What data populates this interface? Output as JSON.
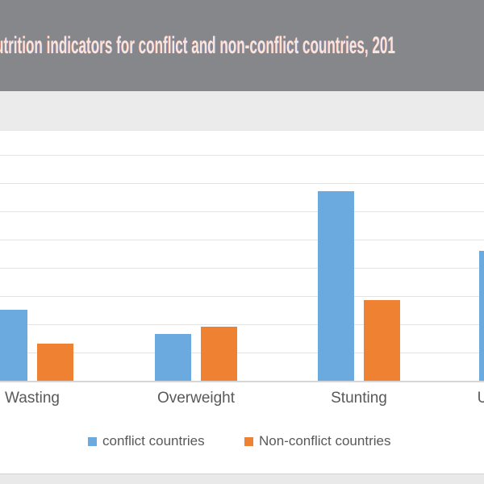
{
  "header": {
    "title_visible": "utrition indicators for conflict and non-conflict countries, 201",
    "bg_color": "#85878a",
    "text_color": "#f4e7e0"
  },
  "legend": {
    "items": [
      {
        "label": "conflict countries",
        "color": "#6aaade"
      },
      {
        "label": "Non-conflict countries",
        "color": "#ee8132"
      }
    ]
  },
  "chart_data": {
    "type": "bar",
    "title": "utrition indicators for conflict and non-conflict countries, 201",
    "categories": [
      "Wasting",
      "Overweight",
      "Stunting",
      "Underweight"
    ],
    "category_labels_visible": [
      "Wasting",
      "Overweight",
      "Stunting",
      "U"
    ],
    "series": [
      {
        "name": "conflict countries",
        "color": "#6aaade",
        "values": [
          12.5,
          8.3,
          33.5,
          23
        ]
      },
      {
        "name": "Non-conflict countries",
        "color": "#ee8132",
        "values": [
          6.5,
          9.5,
          14.3,
          null
        ]
      }
    ],
    "unit_per_gridline": 5,
    "ylim_visible": [
      0,
      44
    ],
    "grid": true,
    "legend_position": "bottom",
    "xlabel": "",
    "ylabel": "",
    "crop_note": "chart is cropped: left half of first blue bar, top of axis, y-axis tick labels and fourth category mostly outside the frame; only the letter U of the fourth category label is visible"
  },
  "colors": {
    "header_gray": "#85878a",
    "page_band_gray": "#ebebeb",
    "plot_background": "#ffffff",
    "gridline": "#e3e3e3",
    "axis_line": "#d6d6d6",
    "label_text": "#595959",
    "footer_band": "#e9e9e9"
  }
}
